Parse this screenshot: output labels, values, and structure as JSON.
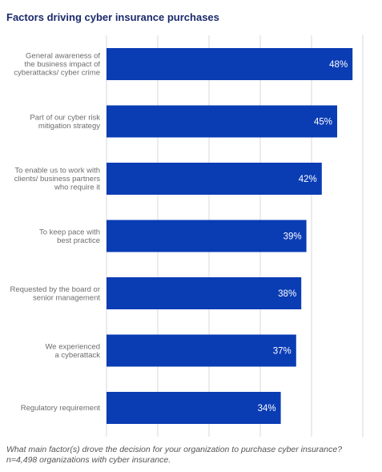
{
  "chart_data": {
    "type": "bar",
    "orientation": "horizontal",
    "title": "Factors driving cyber insurance purchases",
    "categories": [
      [
        "General awareness of",
        "the business impact of",
        "cyberattacks/ cyber crime"
      ],
      [
        "Part of our cyber risk",
        "mitigation strategy"
      ],
      [
        "To enable us to work with",
        "clients/ business partners",
        "who require it"
      ],
      [
        "To keep pace with",
        "best practice"
      ],
      [
        "Requested by the board or",
        "senior management"
      ],
      [
        "We experienced",
        "a cyberattack"
      ],
      [
        "Regulatory requirement"
      ]
    ],
    "values": [
      48,
      45,
      42,
      39,
      38,
      37,
      34
    ],
    "value_labels": [
      "48%",
      "45%",
      "42%",
      "39%",
      "38%",
      "37%",
      "34%"
    ],
    "xlim": [
      0,
      50
    ],
    "grid": true,
    "bar_color": "#0a3cb4",
    "footnote": "What main factor(s) drove the decision for your organization to purchase cyber insurance? n=4,498 organizations with cyber insurance."
  }
}
